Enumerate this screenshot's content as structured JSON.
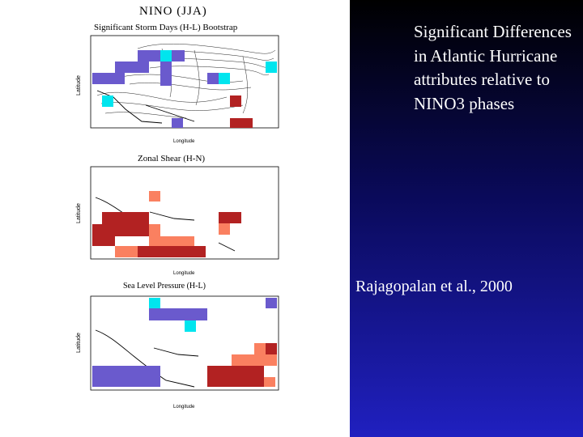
{
  "figure": {
    "title": "NINO (JJA)",
    "panels": [
      {
        "id": "p1",
        "title": "Significant Storm Days (H-L) Bootstrap",
        "ylabel": "Latitude",
        "xlabel": "Longitude"
      },
      {
        "id": "p2",
        "title": "Zonal Shear (H-N)",
        "ylabel": "Latitude",
        "xlabel": "Longitude"
      },
      {
        "id": "p3",
        "title": "Sea Level Pressure (H-L)",
        "ylabel": "Latitude",
        "xlabel": "Longitude"
      }
    ]
  },
  "slide": {
    "headline": "Significant Differences in Atlantic Hurricane attributes relative to NINO3 phases",
    "citation": "Rajagopalan et al., 2000"
  },
  "colors": {
    "negative_strong": "#6a5acd",
    "negative_weak": "#00e5ee",
    "positive_strong": "#b22222",
    "positive_weak": "#fa8060",
    "background_top": "#000000",
    "background_bottom": "#2020c0"
  }
}
